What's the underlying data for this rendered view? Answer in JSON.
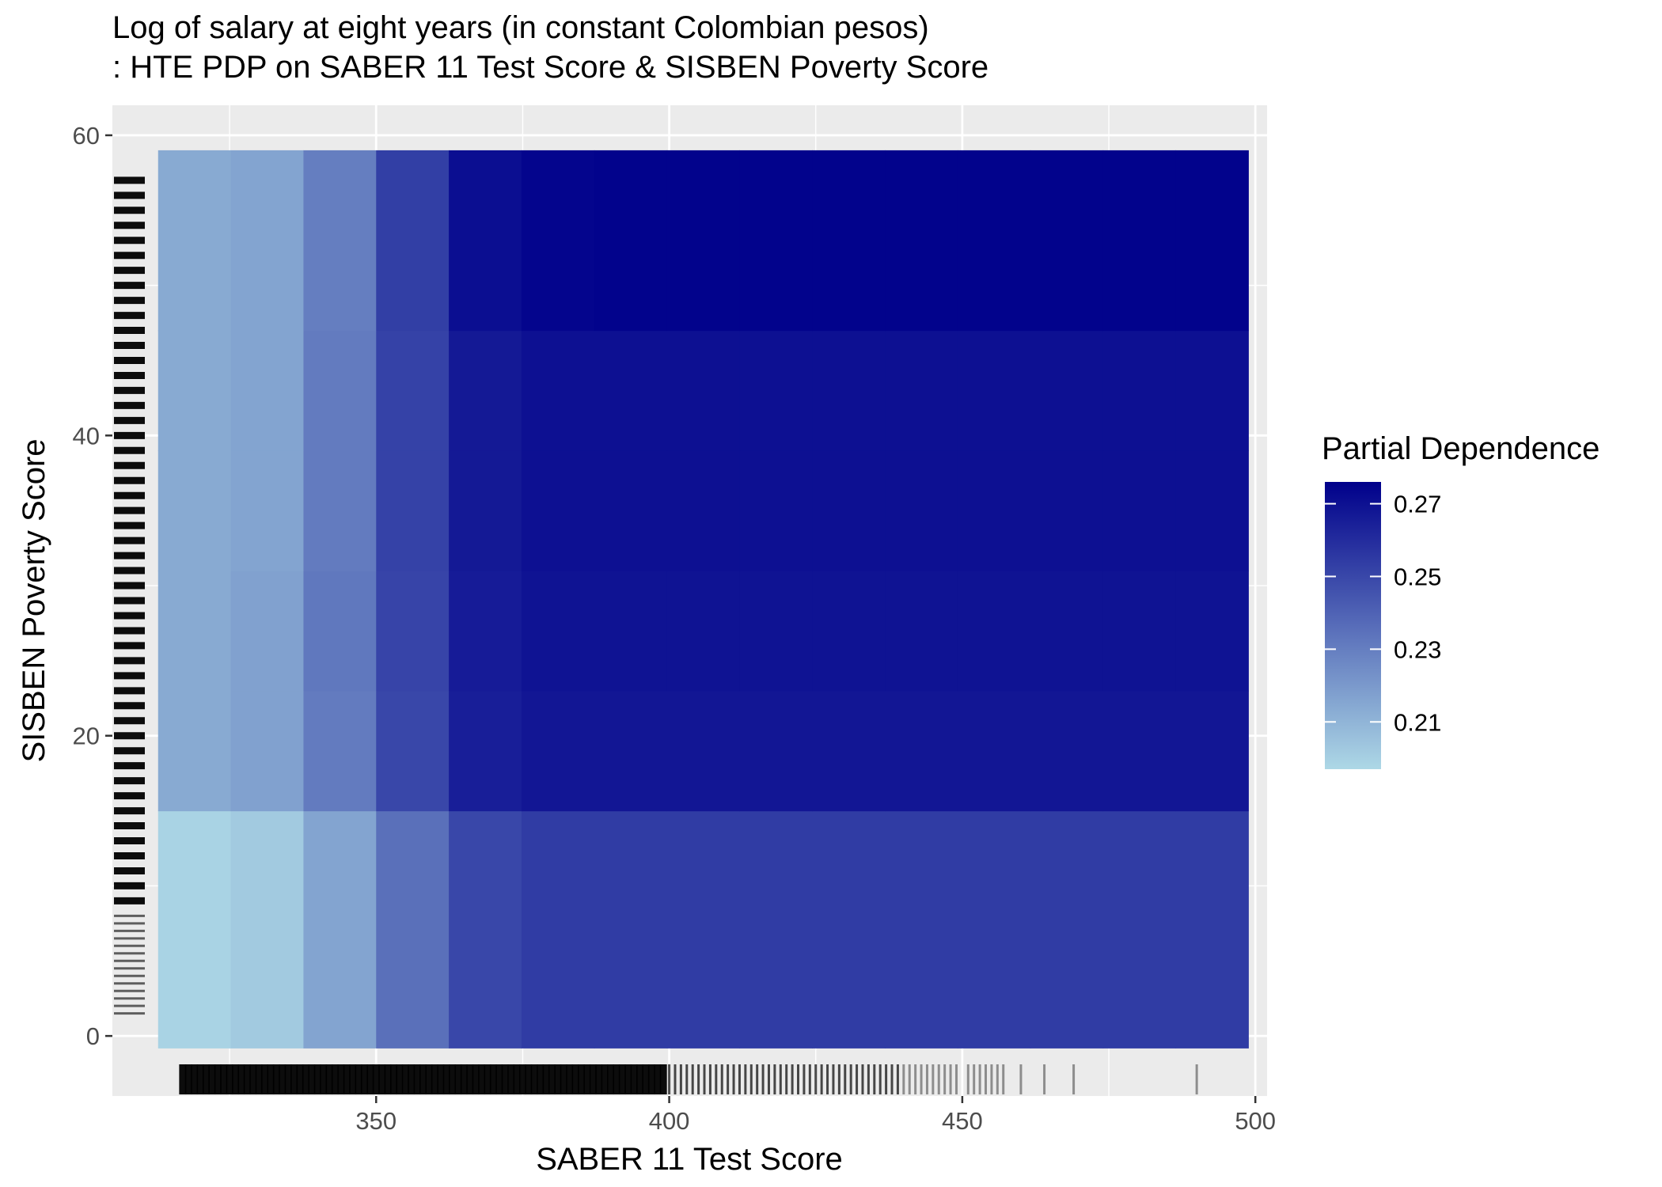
{
  "chart_data": {
    "type": "heatmap",
    "title": "Log of salary at eight years (in constant Colombian pesos)",
    "subtitle": ": HTE PDP on SABER 11 Test Score & SISBEN Poverty Score",
    "xlabel": "SABER 11 Test Score",
    "ylabel": "SISBEN Poverty Score",
    "xlim": [
      305,
      502
    ],
    "ylim": [
      -4,
      62
    ],
    "x_ticks": [
      350,
      400,
      450,
      500
    ],
    "x_tick_labels": [
      "350",
      "400",
      "450",
      "500"
    ],
    "y_ticks": [
      0,
      20,
      40,
      60
    ],
    "y_tick_labels": [
      "0",
      "20",
      "40",
      "60"
    ],
    "grid": true,
    "x_bins": [
      312.8,
      325.2,
      337.6,
      350.0,
      362.4,
      374.8,
      387.2,
      399.6,
      412.0,
      424.4,
      436.8,
      449.2,
      461.6,
      474.0,
      486.4,
      498.8
    ],
    "y_bins": [
      -0.8,
      15.0,
      23.0,
      31.0,
      39.0,
      47.0,
      59.0
    ],
    "z": [
      [
        0.199,
        0.202,
        0.216,
        0.235,
        0.25,
        0.254,
        0.254,
        0.254,
        0.254,
        0.254,
        0.254,
        0.254,
        0.254,
        0.254,
        0.254
      ],
      [
        0.214,
        0.217,
        0.231,
        0.25,
        0.265,
        0.268,
        0.268,
        0.268,
        0.268,
        0.268,
        0.268,
        0.268,
        0.268,
        0.268,
        0.268
      ],
      [
        0.214,
        0.217,
        0.232,
        0.251,
        0.266,
        0.269,
        0.269,
        0.269,
        0.269,
        0.269,
        0.269,
        0.269,
        0.269,
        0.269,
        0.269
      ],
      [
        0.214,
        0.216,
        0.231,
        0.252,
        0.267,
        0.27,
        0.27,
        0.27,
        0.27,
        0.27,
        0.27,
        0.27,
        0.27,
        0.27,
        0.27
      ],
      [
        0.214,
        0.216,
        0.231,
        0.252,
        0.267,
        0.27,
        0.27,
        0.27,
        0.27,
        0.27,
        0.27,
        0.27,
        0.27,
        0.27,
        0.27
      ],
      [
        0.214,
        0.216,
        0.23,
        0.253,
        0.271,
        0.274,
        0.275,
        0.275,
        0.275,
        0.275,
        0.275,
        0.275,
        0.275,
        0.275,
        0.275
      ]
    ],
    "legend": {
      "title": "Partial Dependence",
      "position": "right",
      "range": [
        0.197,
        0.276
      ],
      "ticks": [
        0.21,
        0.23,
        0.25,
        0.27
      ],
      "tick_labels": [
        "0.21",
        "0.23",
        "0.25",
        "0.27"
      ],
      "color_low": "#ADD8E6",
      "color_high": "#00008B"
    },
    "rug_x": [
      317,
      318,
      319,
      320,
      321,
      322,
      323,
      324,
      325,
      326,
      327,
      328,
      329,
      330,
      331,
      332,
      333,
      334,
      335,
      336,
      337,
      338,
      339,
      340,
      341,
      342,
      343,
      344,
      345,
      346,
      347,
      348,
      349,
      350,
      351,
      352,
      353,
      354,
      355,
      356,
      357,
      358,
      359,
      360,
      361,
      362,
      363,
      364,
      365,
      366,
      367,
      368,
      369,
      370,
      371,
      372,
      373,
      374,
      375,
      376,
      377,
      378,
      379,
      380,
      381,
      382,
      383,
      384,
      385,
      386,
      387,
      388,
      389,
      390,
      391,
      392,
      393,
      394,
      395,
      396,
      397,
      398,
      399,
      400,
      401,
      402,
      403,
      404,
      405,
      406,
      407,
      408,
      409,
      410,
      411,
      412,
      413,
      414,
      415,
      416,
      417,
      418,
      419,
      420,
      421,
      422,
      423,
      424,
      425,
      426,
      427,
      428,
      429,
      430,
      431,
      432,
      433,
      434,
      435,
      436,
      437,
      438,
      439,
      440,
      441,
      442,
      443,
      444,
      445,
      446,
      447,
      448,
      449,
      451,
      452,
      453,
      454,
      455,
      456,
      457,
      460,
      464,
      469,
      490
    ],
    "rug_y": [
      1.5,
      2.0,
      2.5,
      3.0,
      3.5,
      4.0,
      4.5,
      5.0,
      5.5,
      6.0,
      6.5,
      7.0,
      7.5,
      8.0,
      9.0,
      10.0,
      11.0,
      12.0,
      13.0,
      14.0,
      15.0,
      16.0,
      17.0,
      18.0,
      19.0,
      20.0,
      21.0,
      22.0,
      23.0,
      24.0,
      25.0,
      26.0,
      27.0,
      28.0,
      29.0,
      30.0,
      31.0,
      32.0,
      33.0,
      34.0,
      35.0,
      36.0,
      37.0,
      38.0,
      39.0,
      40.0,
      41.0,
      42.0,
      43.0,
      44.0,
      45.0,
      46.0,
      47.0,
      48.0,
      49.0,
      50.0,
      51.0,
      52.0,
      53.0,
      54.0,
      55.0,
      56.0,
      57.0
    ]
  }
}
